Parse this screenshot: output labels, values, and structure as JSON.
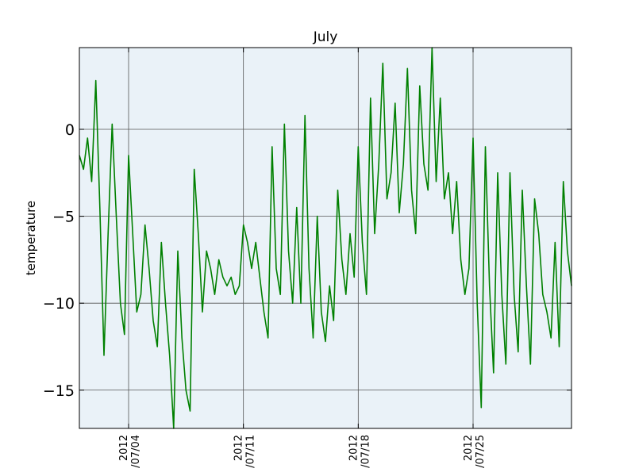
{
  "chart_data": {
    "type": "line",
    "title": "July",
    "ylabel": "temperature",
    "xlabel": "",
    "x_range": [
      "2012-07-01",
      "2012-07-31"
    ],
    "ylim": [
      -17.2,
      4.7
    ],
    "grid": true,
    "background": "#eaf2f8",
    "line_color": "#008000",
    "y_ticks": [
      {
        "value": 0,
        "label": "0"
      },
      {
        "value": -5,
        "label": "−5"
      },
      {
        "value": -10,
        "label": "−10"
      },
      {
        "value": -15,
        "label": "−15"
      }
    ],
    "x_ticks": [
      {
        "date": "2012-07-04",
        "label_top": "2012",
        "label_bottom": "/07/04"
      },
      {
        "date": "2012-07-11",
        "label_top": "2012",
        "label_bottom": "/07/11"
      },
      {
        "date": "2012-07-18",
        "label_top": "2012",
        "label_bottom": "/07/18"
      },
      {
        "date": "2012-07-25",
        "label_top": "2012",
        "label_bottom": "/07/25"
      }
    ],
    "series": [
      {
        "points": [
          [
            "2012-07-01T00:00",
            -1.5
          ],
          [
            "2012-07-01T06:00",
            -2.3
          ],
          [
            "2012-07-01T12:00",
            -0.5
          ],
          [
            "2012-07-01T18:00",
            -3.0
          ],
          [
            "2012-07-02T00:00",
            2.8
          ],
          [
            "2012-07-02T06:00",
            -4.5
          ],
          [
            "2012-07-02T12:00",
            -13.0
          ],
          [
            "2012-07-02T18:00",
            -6.0
          ],
          [
            "2012-07-03T00:00",
            0.3
          ],
          [
            "2012-07-03T06:00",
            -5.0
          ],
          [
            "2012-07-03T12:00",
            -10.0
          ],
          [
            "2012-07-03T18:00",
            -11.8
          ],
          [
            "2012-07-04T00:00",
            -1.5
          ],
          [
            "2012-07-04T06:00",
            -6.0
          ],
          [
            "2012-07-04T12:00",
            -10.5
          ],
          [
            "2012-07-04T18:00",
            -9.5
          ],
          [
            "2012-07-05T00:00",
            -5.5
          ],
          [
            "2012-07-05T06:00",
            -8.0
          ],
          [
            "2012-07-05T12:00",
            -11.0
          ],
          [
            "2012-07-05T18:00",
            -12.5
          ],
          [
            "2012-07-06T00:00",
            -6.5
          ],
          [
            "2012-07-06T06:00",
            -10.0
          ],
          [
            "2012-07-06T12:00",
            -13.0
          ],
          [
            "2012-07-06T18:00",
            -17.2
          ],
          [
            "2012-07-07T00:00",
            -7.0
          ],
          [
            "2012-07-07T06:00",
            -12.0
          ],
          [
            "2012-07-07T12:00",
            -15.0
          ],
          [
            "2012-07-07T18:00",
            -16.2
          ],
          [
            "2012-07-08T00:00",
            -2.3
          ],
          [
            "2012-07-08T06:00",
            -6.0
          ],
          [
            "2012-07-08T12:00",
            -10.5
          ],
          [
            "2012-07-08T18:00",
            -7.0
          ],
          [
            "2012-07-09T00:00",
            -8.0
          ],
          [
            "2012-07-09T06:00",
            -9.5
          ],
          [
            "2012-07-09T12:00",
            -7.5
          ],
          [
            "2012-07-09T18:00",
            -8.5
          ],
          [
            "2012-07-10T00:00",
            -9.0
          ],
          [
            "2012-07-10T06:00",
            -8.5
          ],
          [
            "2012-07-10T12:00",
            -9.5
          ],
          [
            "2012-07-10T18:00",
            -9.0
          ],
          [
            "2012-07-11T00:00",
            -5.5
          ],
          [
            "2012-07-11T06:00",
            -6.5
          ],
          [
            "2012-07-11T12:00",
            -8.0
          ],
          [
            "2012-07-11T18:00",
            -6.5
          ],
          [
            "2012-07-12T00:00",
            -8.5
          ],
          [
            "2012-07-12T06:00",
            -10.5
          ],
          [
            "2012-07-12T12:00",
            -12.0
          ],
          [
            "2012-07-12T18:00",
            -1.0
          ],
          [
            "2012-07-13T00:00",
            -8.0
          ],
          [
            "2012-07-13T06:00",
            -9.5
          ],
          [
            "2012-07-13T12:00",
            0.3
          ],
          [
            "2012-07-13T18:00",
            -7.0
          ],
          [
            "2012-07-14T00:00",
            -10.0
          ],
          [
            "2012-07-14T06:00",
            -4.5
          ],
          [
            "2012-07-14T12:00",
            -10.0
          ],
          [
            "2012-07-14T18:00",
            0.8
          ],
          [
            "2012-07-15T00:00",
            -8.0
          ],
          [
            "2012-07-15T06:00",
            -12.0
          ],
          [
            "2012-07-15T12:00",
            -5.0
          ],
          [
            "2012-07-15T18:00",
            -10.5
          ],
          [
            "2012-07-16T00:00",
            -12.2
          ],
          [
            "2012-07-16T06:00",
            -9.0
          ],
          [
            "2012-07-16T12:00",
            -11.0
          ],
          [
            "2012-07-16T18:00",
            -3.5
          ],
          [
            "2012-07-17T00:00",
            -7.5
          ],
          [
            "2012-07-17T06:00",
            -9.5
          ],
          [
            "2012-07-17T12:00",
            -6.0
          ],
          [
            "2012-07-17T18:00",
            -8.5
          ],
          [
            "2012-07-18T00:00",
            -1.0
          ],
          [
            "2012-07-18T06:00",
            -6.5
          ],
          [
            "2012-07-18T12:00",
            -9.5
          ],
          [
            "2012-07-18T18:00",
            1.8
          ],
          [
            "2012-07-19T00:00",
            -6.0
          ],
          [
            "2012-07-19T06:00",
            -2.0
          ],
          [
            "2012-07-19T12:00",
            3.8
          ],
          [
            "2012-07-19T18:00",
            -4.0
          ],
          [
            "2012-07-20T00:00",
            -2.5
          ],
          [
            "2012-07-20T06:00",
            1.5
          ],
          [
            "2012-07-20T12:00",
            -4.8
          ],
          [
            "2012-07-20T18:00",
            -2.0
          ],
          [
            "2012-07-21T00:00",
            3.5
          ],
          [
            "2012-07-21T06:00",
            -3.5
          ],
          [
            "2012-07-21T12:00",
            -6.0
          ],
          [
            "2012-07-21T18:00",
            2.5
          ],
          [
            "2012-07-22T00:00",
            -2.0
          ],
          [
            "2012-07-22T06:00",
            -3.5
          ],
          [
            "2012-07-22T12:00",
            4.7
          ],
          [
            "2012-07-22T18:00",
            -3.0
          ],
          [
            "2012-07-23T00:00",
            1.8
          ],
          [
            "2012-07-23T06:00",
            -4.0
          ],
          [
            "2012-07-23T12:00",
            -2.5
          ],
          [
            "2012-07-23T18:00",
            -6.0
          ],
          [
            "2012-07-24T00:00",
            -3.0
          ],
          [
            "2012-07-24T06:00",
            -7.5
          ],
          [
            "2012-07-24T12:00",
            -9.5
          ],
          [
            "2012-07-24T18:00",
            -8.0
          ],
          [
            "2012-07-25T00:00",
            -0.5
          ],
          [
            "2012-07-25T06:00",
            -10.0
          ],
          [
            "2012-07-25T12:00",
            -16.0
          ],
          [
            "2012-07-25T18:00",
            -1.0
          ],
          [
            "2012-07-26T00:00",
            -9.0
          ],
          [
            "2012-07-26T06:00",
            -14.0
          ],
          [
            "2012-07-26T12:00",
            -2.5
          ],
          [
            "2012-07-26T18:00",
            -9.5
          ],
          [
            "2012-07-27T00:00",
            -13.5
          ],
          [
            "2012-07-27T06:00",
            -2.5
          ],
          [
            "2012-07-27T12:00",
            -9.5
          ],
          [
            "2012-07-27T18:00",
            -12.8
          ],
          [
            "2012-07-28T00:00",
            -3.5
          ],
          [
            "2012-07-28T06:00",
            -9.0
          ],
          [
            "2012-07-28T12:00",
            -13.5
          ],
          [
            "2012-07-28T18:00",
            -4.0
          ],
          [
            "2012-07-29T00:00",
            -6.0
          ],
          [
            "2012-07-29T06:00",
            -9.5
          ],
          [
            "2012-07-29T12:00",
            -10.5
          ],
          [
            "2012-07-29T18:00",
            -12.0
          ],
          [
            "2012-07-30T00:00",
            -6.5
          ],
          [
            "2012-07-30T06:00",
            -12.5
          ],
          [
            "2012-07-30T12:00",
            -3.0
          ],
          [
            "2012-07-30T18:00",
            -7.0
          ],
          [
            "2012-07-31T00:00",
            -9.0
          ]
        ]
      }
    ]
  }
}
